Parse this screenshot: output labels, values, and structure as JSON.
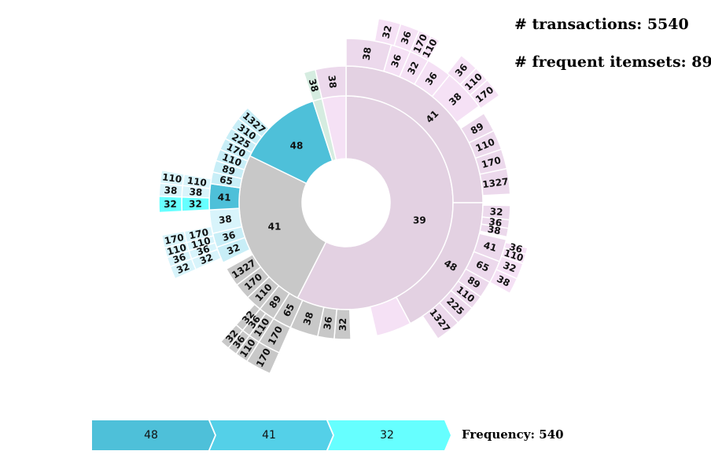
{
  "stats": {
    "transactions_label": "# transactions: 5540",
    "itemsets_label": "# frequent itemsets: 89"
  },
  "breadcrumb": {
    "items": [
      {
        "label": "48",
        "color": "#4ec0d9"
      },
      {
        "label": "41",
        "color": "#54d0e8"
      },
      {
        "label": "32",
        "color": "#66ffff"
      }
    ],
    "frequency_label": "Frequency: 540"
  },
  "colors": {
    "purple_root": "#e3d1e2",
    "purple_mid": "#ecd9ec",
    "purple_light": "#f5e1f5",
    "teal_root": "#4ec0d9",
    "teal_mid": "#c8eef7",
    "teal_light": "#d8f4fb",
    "teal_selected": "#66ffff",
    "gray": "#c8c8c8",
    "green": "#d5ece0"
  },
  "chart_data": {
    "type": "sunburst",
    "title": "",
    "rings": 4,
    "sectors": [
      {
        "label": "39",
        "ring": 0,
        "start": 0,
        "end": 207,
        "color": "purple_root"
      },
      {
        "label": "41",
        "ring": 0,
        "start": 207,
        "end": 296,
        "color": "gray"
      },
      {
        "label": "48",
        "ring": 0,
        "start": 296,
        "end": 342,
        "color": "teal_root"
      },
      {
        "label": "",
        "ring": 0,
        "start": 342,
        "end": 347,
        "color": "green"
      },
      {
        "label": "",
        "ring": 0,
        "start": 347,
        "end": 360,
        "color": "purple_light"
      },
      {
        "label": "41",
        "ring": 1,
        "start": 0,
        "end": 90,
        "color": "purple_root"
      },
      {
        "label": "48",
        "ring": 1,
        "start": 90,
        "end": 152,
        "color": "purple_root"
      },
      {
        "label": "",
        "ring": 1,
        "start": 152,
        "end": 167,
        "color": "purple_light"
      },
      {
        "label": "32",
        "ring": 1,
        "start": 178,
        "end": 185,
        "color": "gray"
      },
      {
        "label": "36",
        "ring": 1,
        "start": 185,
        "end": 192,
        "color": "gray"
      },
      {
        "label": "38",
        "ring": 1,
        "start": 192,
        "end": 204,
        "color": "gray"
      },
      {
        "label": "65",
        "ring": 1,
        "start": 204,
        "end": 212,
        "color": "gray"
      },
      {
        "label": "89",
        "ring": 1,
        "start": 212,
        "end": 219,
        "color": "gray"
      },
      {
        "label": "110",
        "ring": 1,
        "start": 219,
        "end": 226,
        "color": "gray"
      },
      {
        "label": "170",
        "ring": 1,
        "start": 226,
        "end": 233,
        "color": "gray"
      },
      {
        "label": "1327",
        "ring": 1,
        "start": 233,
        "end": 241,
        "color": "gray"
      },
      {
        "label": "32",
        "ring": 1,
        "start": 244,
        "end": 251,
        "color": "teal_mid"
      },
      {
        "label": "36",
        "ring": 1,
        "start": 251,
        "end": 257,
        "color": "teal_mid"
      },
      {
        "label": "38",
        "ring": 1,
        "start": 257,
        "end": 267,
        "color": "teal_light"
      },
      {
        "label": "41",
        "ring": 1,
        "start": 267,
        "end": 278,
        "color": "teal_root"
      },
      {
        "label": "65",
        "ring": 1,
        "start": 278,
        "end": 283,
        "color": "teal_mid"
      },
      {
        "label": "89",
        "ring": 1,
        "start": 283,
        "end": 288,
        "color": "teal_mid"
      },
      {
        "label": "110",
        "ring": 1,
        "start": 288,
        "end": 293,
        "color": "teal_mid"
      },
      {
        "label": "170",
        "ring": 1,
        "start": 293,
        "end": 298,
        "color": "teal_mid"
      },
      {
        "label": "225",
        "ring": 1,
        "start": 298,
        "end": 303,
        "color": "teal_mid"
      },
      {
        "label": "310",
        "ring": 1,
        "start": 303,
        "end": 308,
        "color": "teal_mid"
      },
      {
        "label": "1327",
        "ring": 1,
        "start": 308,
        "end": 314,
        "color": "teal_mid"
      },
      {
        "label": "38",
        "ring": 1,
        "start": 342,
        "end": 347,
        "color": "green"
      },
      {
        "label": "38",
        "ring": 1,
        "start": 347,
        "end": 360,
        "color": "purple_mid"
      },
      {
        "label": "38",
        "ring": 2,
        "start": 0,
        "end": 16,
        "color": "purple_mid"
      },
      {
        "label": "89",
        "ring": 2,
        "start": 57,
        "end": 64,
        "color": "purple_mid"
      },
      {
        "label": "110",
        "ring": 2,
        "start": 64,
        "end": 71,
        "color": "purple_mid"
      },
      {
        "label": "170",
        "ring": 2,
        "start": 71,
        "end": 78,
        "color": "purple_mid"
      },
      {
        "label": "1327",
        "ring": 2,
        "start": 78,
        "end": 87,
        "color": "purple_mid"
      },
      {
        "label": "32",
        "ring": 2,
        "start": 91,
        "end": 96,
        "color": "purple_mid"
      },
      {
        "label": "36",
        "ring": 2,
        "start": 96,
        "end": 99,
        "color": "purple_mid"
      },
      {
        "label": "38",
        "ring": 2,
        "start": 99,
        "end": 102,
        "color": "purple_mid"
      },
      {
        "label": "41",
        "ring": 2,
        "start": 103,
        "end": 111,
        "color": "purple_mid"
      },
      {
        "label": "65",
        "ring": 2,
        "start": 111,
        "end": 119,
        "color": "purple_mid"
      },
      {
        "label": "89",
        "ring": 2,
        "start": 119,
        "end": 125,
        "color": "purple_mid"
      },
      {
        "label": "110",
        "ring": 2,
        "start": 125,
        "end": 130,
        "color": "purple_mid"
      },
      {
        "label": "225",
        "ring": 2,
        "start": 130,
        "end": 137,
        "color": "purple_mid"
      },
      {
        "label": "1327",
        "ring": 2,
        "start": 137,
        "end": 146,
        "color": "purple_mid"
      },
      {
        "label": "170",
        "ring": 2,
        "start": 204,
        "end": 212,
        "color": "gray"
      },
      {
        "label": "110",
        "ring": 2,
        "start": 212,
        "end": 216,
        "color": "gray"
      },
      {
        "label": "36",
        "ring": 2,
        "start": 216,
        "end": 219,
        "color": "gray"
      },
      {
        "label": "32",
        "ring": 2,
        "start": 219,
        "end": 222,
        "color": "gray"
      },
      {
        "label": "32",
        "ring": 2,
        "start": 267,
        "end": 272,
        "color": "teal_selected"
      },
      {
        "label": "38",
        "ring": 2,
        "start": 272,
        "end": 276,
        "color": "teal_light"
      },
      {
        "label": "110",
        "ring": 2,
        "start": 276,
        "end": 280,
        "color": "teal_light"
      },
      {
        "label": "32",
        "ring": 2,
        "start": 246,
        "end": 250,
        "color": "teal_light"
      },
      {
        "label": "36",
        "ring": 2,
        "start": 250,
        "end": 253,
        "color": "teal_light"
      },
      {
        "label": "110",
        "ring": 2,
        "start": 253,
        "end": 256,
        "color": "teal_light"
      },
      {
        "label": "170",
        "ring": 2,
        "start": 256,
        "end": 260,
        "color": "teal_light"
      },
      {
        "label": "36",
        "ring": 2,
        "start": 16,
        "end": 23,
        "color": "purple_light"
      },
      {
        "label": "32",
        "ring": 2,
        "start": 23,
        "end": 30,
        "color": "purple_light"
      },
      {
        "label": "36",
        "ring": 2,
        "start": 30,
        "end": 39,
        "color": "purple_light"
      },
      {
        "label": "38",
        "ring": 2,
        "start": 39,
        "end": 54,
        "color": "purple_light"
      },
      {
        "label": "32",
        "ring": 3,
        "start": 10,
        "end": 17,
        "color": "purple_light"
      },
      {
        "label": "36",
        "ring": 3,
        "start": 17,
        "end": 23,
        "color": "purple_light"
      },
      {
        "label": "170",
        "ring": 3,
        "start": 23,
        "end": 27,
        "color": "purple_light"
      },
      {
        "label": "110",
        "ring": 3,
        "start": 27,
        "end": 30,
        "color": "purple_light"
      },
      {
        "label": "36",
        "ring": 3,
        "start": 38,
        "end": 44,
        "color": "purple_light"
      },
      {
        "label": "110",
        "ring": 3,
        "start": 44,
        "end": 49,
        "color": "purple_light"
      },
      {
        "label": "170",
        "ring": 3,
        "start": 49,
        "end": 55,
        "color": "purple_light"
      },
      {
        "label": "36",
        "ring": 3,
        "start": 104,
        "end": 106,
        "color": "purple_light"
      },
      {
        "label": "110",
        "ring": 3,
        "start": 106,
        "end": 109,
        "color": "purple_light"
      },
      {
        "label": "32",
        "ring": 3,
        "start": 109,
        "end": 114,
        "color": "purple_light"
      },
      {
        "label": "38",
        "ring": 3,
        "start": 114,
        "end": 119,
        "color": "purple_light"
      },
      {
        "label": "170",
        "ring": 3,
        "start": 204,
        "end": 212,
        "color": "gray"
      },
      {
        "label": "110",
        "ring": 3,
        "start": 212,
        "end": 216,
        "color": "gray"
      },
      {
        "label": "36",
        "ring": 3,
        "start": 216,
        "end": 219,
        "color": "gray"
      },
      {
        "label": "32",
        "ring": 3,
        "start": 219,
        "end": 222,
        "color": "gray"
      },
      {
        "label": "32",
        "ring": 3,
        "start": 267,
        "end": 272,
        "color": "teal_selected"
      },
      {
        "label": "38",
        "ring": 3,
        "start": 272,
        "end": 276,
        "color": "teal_light"
      },
      {
        "label": "110",
        "ring": 3,
        "start": 276,
        "end": 280,
        "color": "teal_light"
      },
      {
        "label": "32",
        "ring": 3,
        "start": 246,
        "end": 250,
        "color": "teal_light"
      },
      {
        "label": "36",
        "ring": 3,
        "start": 250,
        "end": 253,
        "color": "teal_light"
      },
      {
        "label": "110",
        "ring": 3,
        "start": 253,
        "end": 256,
        "color": "teal_light"
      },
      {
        "label": "170",
        "ring": 3,
        "start": 256,
        "end": 260,
        "color": "teal_light"
      }
    ]
  }
}
